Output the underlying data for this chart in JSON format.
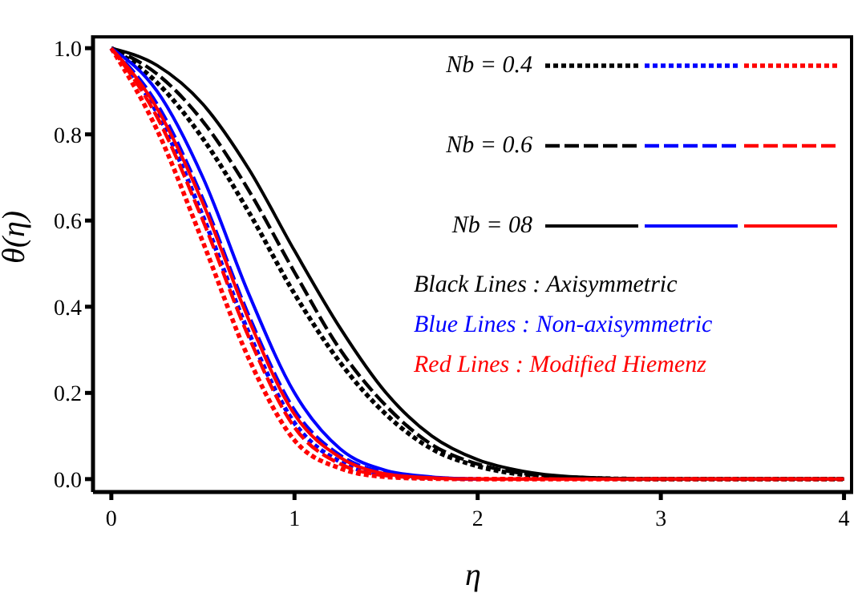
{
  "chart_data": {
    "type": "line",
    "xlabel": "η",
    "ylabel": "θ(η)",
    "x": [
      0,
      0.25,
      0.5,
      0.75,
      1,
      1.25,
      1.5,
      1.75,
      2,
      2.25,
      2.5,
      3,
      3.5,
      4
    ],
    "series": [
      {
        "name": "Nb = 0.4",
        "color": "#000000",
        "line_style": "dotted",
        "values": [
          1,
          0.92,
          0.79,
          0.62,
          0.43,
          0.27,
          0.15,
          0.07,
          0.03,
          0.01,
          0.003,
          0,
          0,
          0
        ]
      },
      {
        "color": "#0000ff",
        "line_style": "dotted",
        "values": [
          1,
          0.85,
          0.61,
          0.34,
          0.13,
          0.04,
          0.01,
          0.002,
          null,
          null,
          null,
          null,
          null,
          null
        ]
      },
      {
        "color": "#ff0000",
        "line_style": "dotted",
        "values": [
          1,
          0.81,
          0.55,
          0.28,
          0.09,
          0.025,
          0.005,
          0.001,
          0,
          0,
          0,
          0,
          0,
          0
        ]
      },
      {
        "name": "Nb = 0.6",
        "color": "#000000",
        "line_style": "dashed",
        "values": [
          1,
          0.94,
          0.83,
          0.67,
          0.48,
          0.3,
          0.17,
          0.08,
          0.035,
          0.013,
          0.004,
          0,
          0,
          0
        ]
      },
      {
        "color": "#0000ff",
        "line_style": "dashed",
        "values": [
          1,
          0.87,
          0.65,
          0.38,
          0.16,
          0.055,
          0.015,
          0.004,
          null,
          null,
          null,
          null,
          null,
          null
        ]
      },
      {
        "color": "#ff0000",
        "line_style": "dashed",
        "values": [
          1,
          0.84,
          0.6,
          0.33,
          0.12,
          0.035,
          0.008,
          0.002,
          0,
          0,
          0,
          0,
          0,
          0
        ]
      },
      {
        "name": "Nb = 08",
        "color": "#000000",
        "line_style": "solid",
        "values": [
          1,
          0.96,
          0.87,
          0.72,
          0.53,
          0.35,
          0.2,
          0.1,
          0.045,
          0.018,
          0.006,
          0,
          0,
          0
        ]
      },
      {
        "color": "#0000ff",
        "line_style": "solid",
        "values": [
          1,
          0.9,
          0.7,
          0.43,
          0.2,
          0.07,
          0.02,
          0.005,
          0,
          null,
          null,
          null,
          null,
          null
        ]
      },
      {
        "color": "#ff0000",
        "line_style": "solid",
        "values": [
          1,
          0.86,
          0.64,
          0.37,
          0.15,
          0.05,
          0.012,
          0.003,
          0,
          0,
          0,
          0,
          0,
          0
        ]
      }
    ],
    "annotations": [
      "Black Lines : Axisymmetric",
      "Blue Lines : Non-axisymmetric",
      "Red Lines : Modified Hiemenz"
    ],
    "xlim": [
      -0.1,
      4.05
    ],
    "ylim": [
      -0.03,
      1.03
    ],
    "xticks": [
      0,
      1,
      2,
      3,
      4
    ],
    "yticks": [
      {
        "value": 0,
        "label": "0.0"
      },
      {
        "value": 0.2,
        "label": "0.2"
      },
      {
        "value": 0.4,
        "label": "0.4"
      },
      {
        "value": 0.6,
        "label": "0.6"
      },
      {
        "value": 0.8,
        "label": "0.8"
      },
      {
        "value": 1,
        "label": "1.0"
      }
    ],
    "grid": false,
    "legend": "top right",
    "marker": "none"
  }
}
